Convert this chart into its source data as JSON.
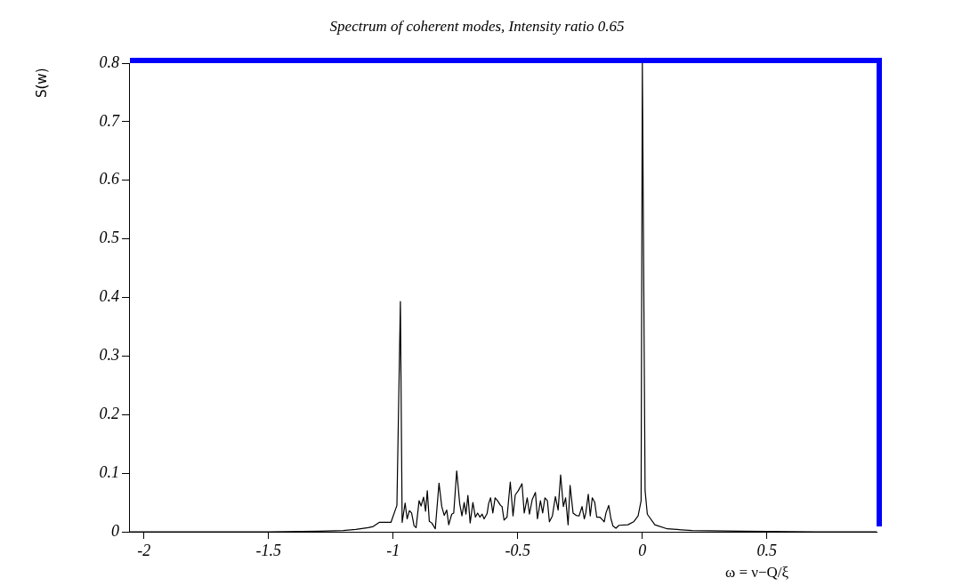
{
  "chart_data": {
    "type": "line",
    "title": "Spectrum of coherent modes, Intensity ratio 0.65",
    "xlabel": "ω = ν−Q/ξ",
    "ylabel": "S(w)",
    "xlim": [
      -2.06,
      0.94
    ],
    "xticks": [
      -2,
      -1.5,
      -1,
      -0.5,
      0,
      0.5
    ],
    "ylim": [
      0,
      0.8
    ],
    "yticks": [
      0,
      0.1,
      0.2,
      0.3,
      0.4,
      0.5,
      0.6,
      0.7,
      0.8
    ],
    "grid": false,
    "legend": false,
    "marker": "none",
    "line_style": "solid",
    "series": [
      {
        "color": "#000000",
        "x": [
          -2.06,
          -1.5,
          -1.3,
          -1.2,
          -1.15,
          -1.1,
          -1.08,
          -1.056,
          -1.009,
          -0.985,
          -0.971,
          -0.964,
          -0.952,
          -0.944,
          -0.935,
          -0.926,
          -0.916,
          -0.908,
          -0.896,
          -0.888,
          -0.878,
          -0.87,
          -0.863,
          -0.855,
          -0.845,
          -0.831,
          -0.816,
          -0.805,
          -0.795,
          -0.785,
          -0.777,
          -0.765,
          -0.757,
          -0.745,
          -0.733,
          -0.724,
          -0.715,
          -0.708,
          -0.7,
          -0.691,
          -0.68,
          -0.67,
          -0.661,
          -0.652,
          -0.643,
          -0.635,
          -0.623,
          -0.617,
          -0.609,
          -0.6,
          -0.591,
          -0.581,
          -0.569,
          -0.563,
          -0.555,
          -0.543,
          -0.53,
          -0.519,
          -0.51,
          -0.498,
          -0.483,
          -0.474,
          -0.462,
          -0.453,
          -0.442,
          -0.429,
          -0.421,
          -0.409,
          -0.4,
          -0.391,
          -0.381,
          -0.373,
          -0.361,
          -0.349,
          -0.338,
          -0.328,
          -0.317,
          -0.308,
          -0.298,
          -0.29,
          -0.278,
          -0.266,
          -0.254,
          -0.242,
          -0.233,
          -0.227,
          -0.217,
          -0.209,
          -0.201,
          -0.191,
          -0.183,
          -0.171,
          -0.159,
          -0.153,
          -0.146,
          -0.135,
          -0.126,
          -0.118,
          -0.106,
          -0.094,
          -0.058,
          -0.035,
          -0.017,
          -0.005,
          0,
          0.011,
          0.02,
          0.05,
          0.1,
          0.2,
          0.4,
          0.7,
          0.94
        ],
        "values": [
          0,
          0,
          0.001,
          0.002,
          0.004,
          0.007,
          0.009,
          0.016,
          0.016,
          0.045,
          0.393,
          0.016,
          0.049,
          0.022,
          0.036,
          0.032,
          0.01,
          0.007,
          0.053,
          0.044,
          0.059,
          0.035,
          0.07,
          0.018,
          0.015,
          0.005,
          0.083,
          0.043,
          0.028,
          0.037,
          0.012,
          0.03,
          0.032,
          0.104,
          0.048,
          0.027,
          0.05,
          0.03,
          0.062,
          0.015,
          0.05,
          0.025,
          0.032,
          0.025,
          0.03,
          0.022,
          0.031,
          0.048,
          0.058,
          0.032,
          0.058,
          0.053,
          0.045,
          0.043,
          0.02,
          0.025,
          0.085,
          0.027,
          0.063,
          0.07,
          0.082,
          0.032,
          0.058,
          0.03,
          0.055,
          0.067,
          0.022,
          0.053,
          0.032,
          0.058,
          0.053,
          0.017,
          0.027,
          0.06,
          0.037,
          0.097,
          0.043,
          0.058,
          0.012,
          0.079,
          0.032,
          0.028,
          0.027,
          0.043,
          0.022,
          0.032,
          0.064,
          0.027,
          0.058,
          0.05,
          0.025,
          0.025,
          0.02,
          0.017,
          0.032,
          0.045,
          0.022,
          0.01,
          0.006,
          0.011,
          0.012,
          0.017,
          0.027,
          0.053,
          0.8,
          0.07,
          0.03,
          0.012,
          0.005,
          0.002,
          0.001,
          0,
          0
        ]
      }
    ]
  }
}
